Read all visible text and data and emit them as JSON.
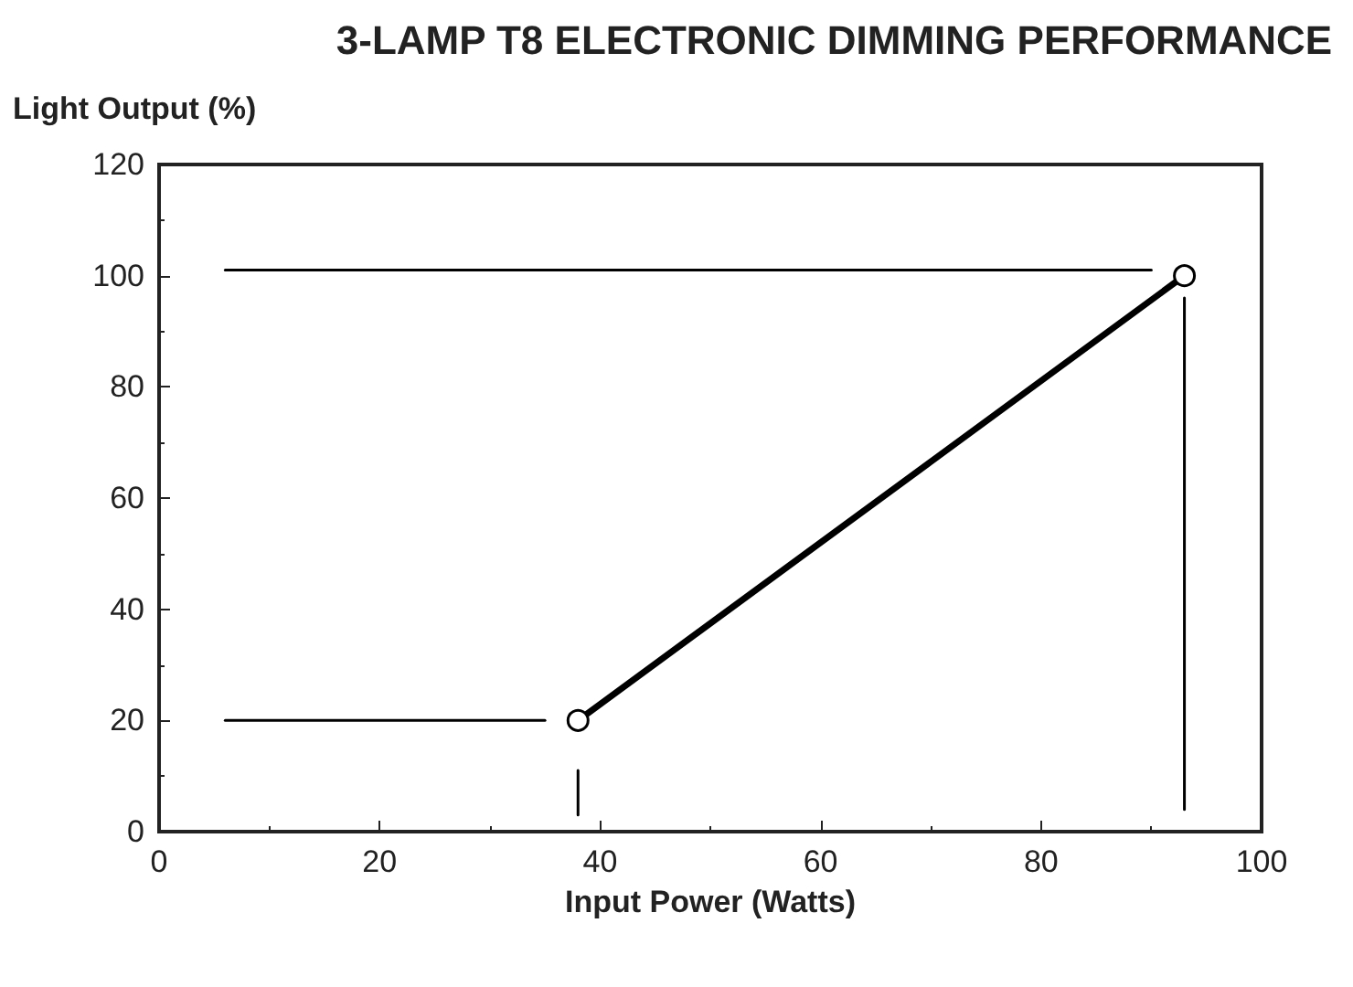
{
  "chart_data": {
    "type": "line",
    "title": "3-LAMP T8 ELECTRONIC DIMMING PERFORMANCE",
    "xlabel": "Input Power (Watts)",
    "ylabel": "Light Output (%)",
    "series": [
      {
        "x": [
          38,
          93
        ],
        "values": [
          20,
          100
        ],
        "color": "#000000",
        "marker": "circle"
      },
      {
        "x": [
          6,
          90
        ],
        "values": [
          101,
          101
        ],
        "color": "#000000",
        "marker": "none"
      },
      {
        "x": [
          6,
          35
        ],
        "values": [
          20,
          20
        ],
        "color": "#000000",
        "marker": "none"
      },
      {
        "x": [
          38,
          38
        ],
        "values": [
          3,
          11
        ],
        "color": "#000000",
        "marker": "none"
      },
      {
        "x": [
          93,
          93
        ],
        "values": [
          4,
          96
        ],
        "color": "#000000",
        "marker": "none"
      }
    ],
    "xlim": [
      0,
      100
    ],
    "xticks": [
      0,
      20,
      40,
      60,
      80,
      100
    ],
    "ylim": [
      0,
      120
    ],
    "yticks": [
      0,
      20,
      40,
      60,
      80,
      100,
      120
    ],
    "grid": false
  }
}
